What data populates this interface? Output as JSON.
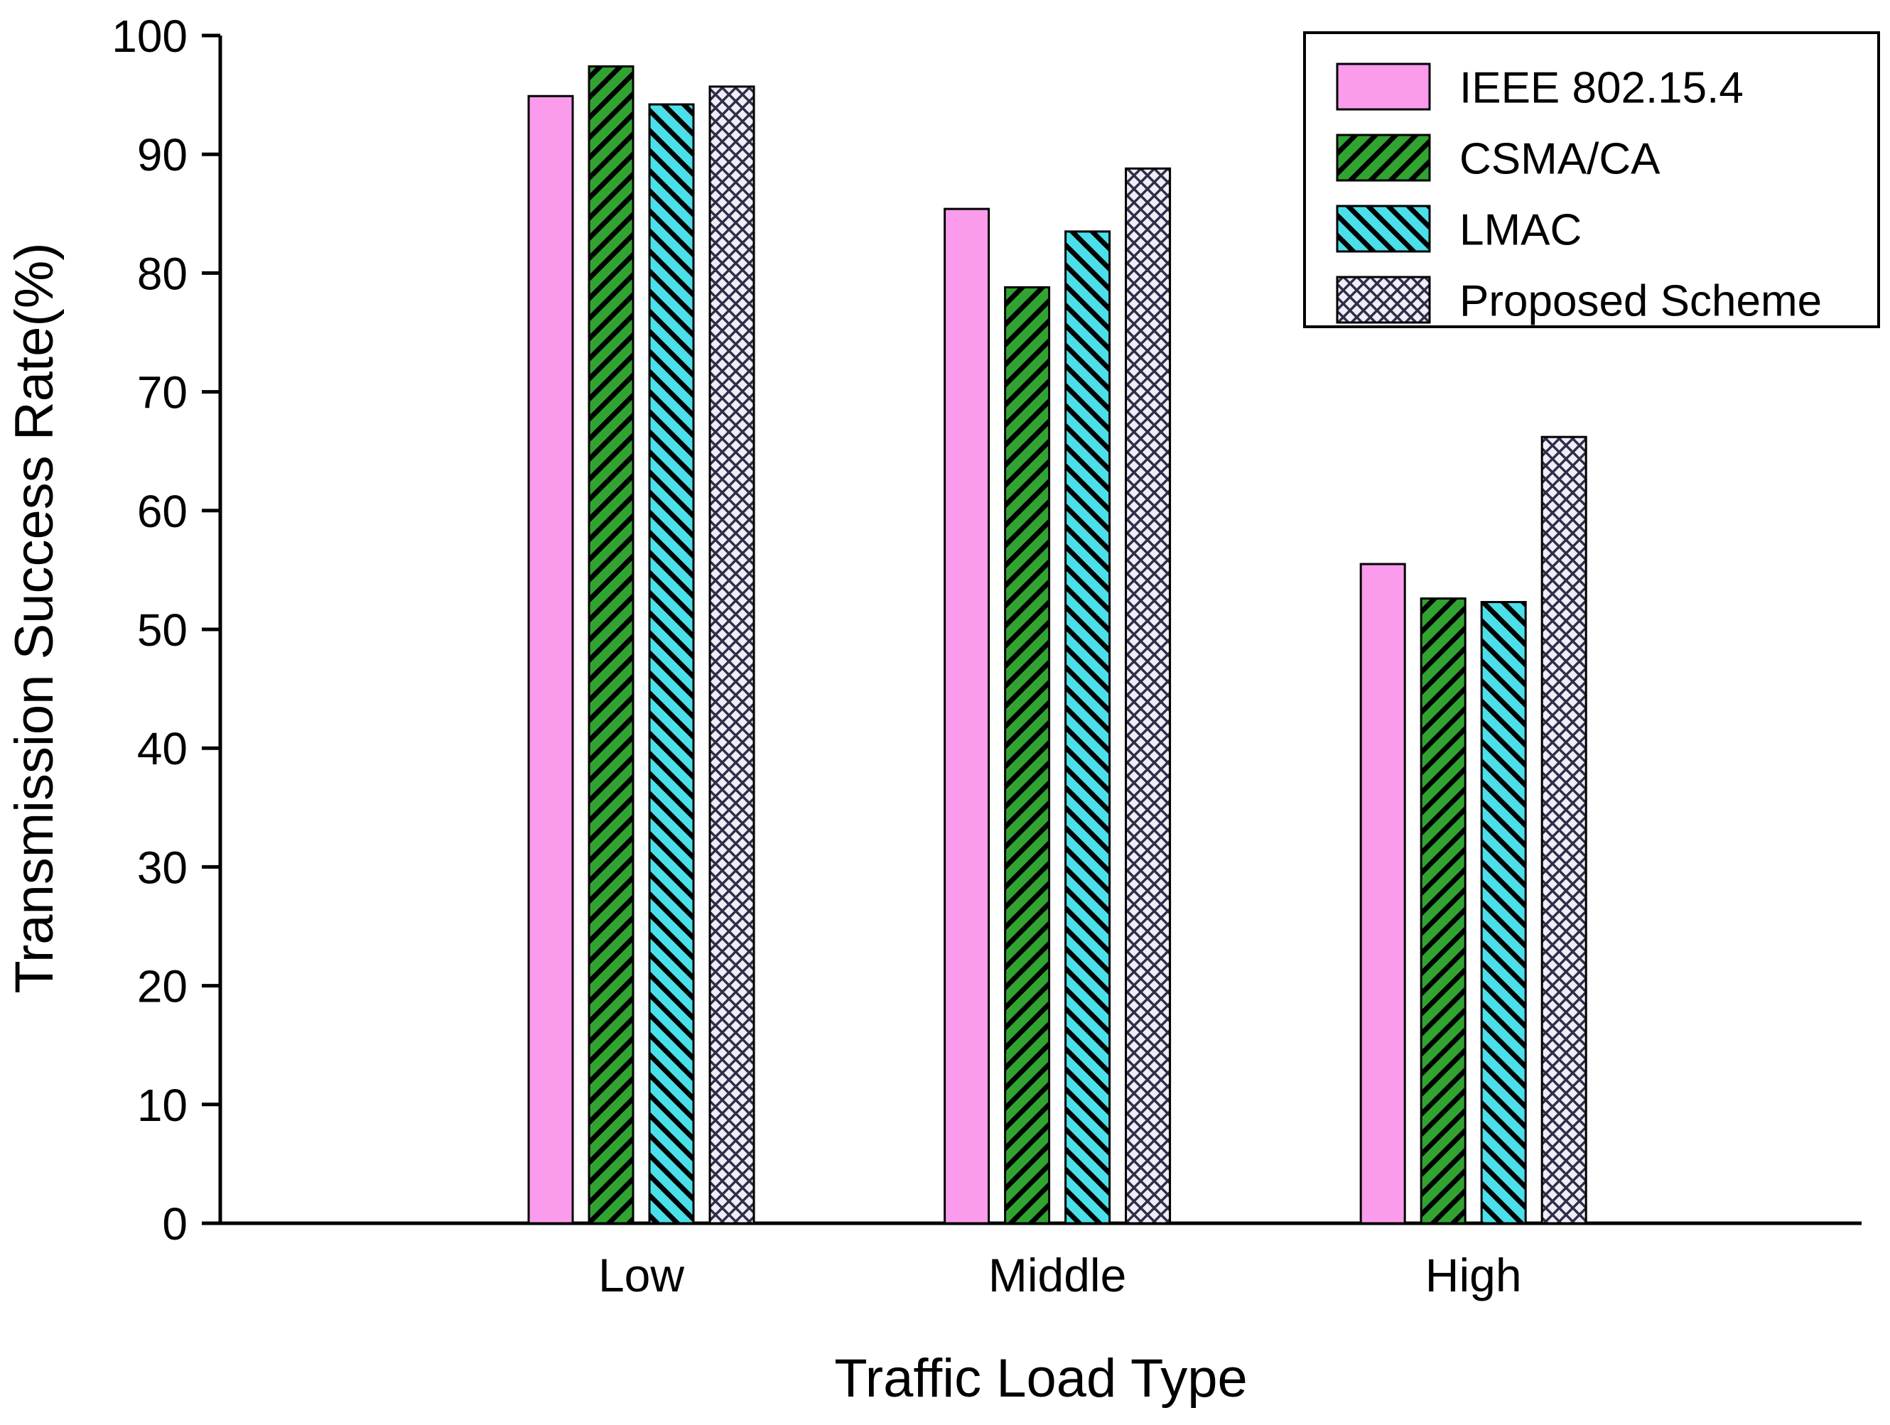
{
  "chart_data": {
    "type": "bar",
    "xlabel": "Traffic Load Type",
    "ylabel": "Transmission Success Rate(%)",
    "categories": [
      "Low",
      "Middle",
      "High"
    ],
    "series": [
      {
        "name": "IEEE 802.15.4",
        "values": [
          94.9,
          85.4,
          55.5
        ],
        "color": "#FA9BEC",
        "pattern": "solid"
      },
      {
        "name": "CSMA/CA",
        "values": [
          97.4,
          78.8,
          52.6
        ],
        "color": "#31A331",
        "pattern": "hatch-up",
        "hatch_color": "#000000"
      },
      {
        "name": "LMAC",
        "values": [
          94.2,
          83.5,
          52.3
        ],
        "color": "#4BDFE9",
        "pattern": "hatch-down",
        "hatch_color": "#000000"
      },
      {
        "name": "Proposed Scheme",
        "values": [
          95.7,
          88.8,
          66.2
        ],
        "color": "#EFEDF7",
        "pattern": "crosshatch",
        "hatch_color": "#2E2E48"
      }
    ],
    "ylim": [
      0,
      100
    ],
    "yticks": [
      0,
      10,
      20,
      30,
      40,
      50,
      60,
      70,
      80,
      90,
      100
    ],
    "grid": false,
    "legend_position": "top-right",
    "axis_color": "#000000",
    "background_color": "#ffffff"
  }
}
